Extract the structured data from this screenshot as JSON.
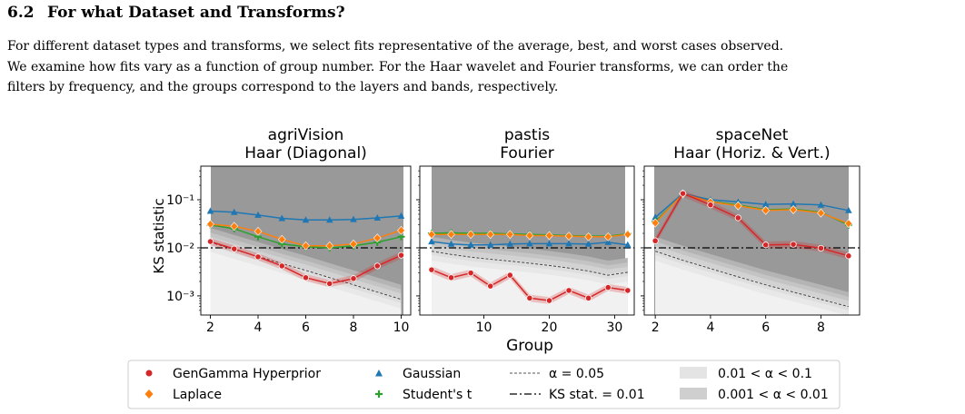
{
  "section": {
    "number": "6.2",
    "title": "For what Dataset and Transforms?"
  },
  "paragraph_lines": [
    "For different dataset types and transforms, we select fits representative of the average, best, and worst cases observed.",
    "We examine how fits vary as a function of group number. For the Haar wavelet and Fourier transforms, we can order the",
    "filters by frequency, and the groups correspond to the layers and bands, respectively."
  ],
  "figure": {
    "ylabel": "KS statistic",
    "xlabel": "Group",
    "reference_line": 0.01,
    "legend": [
      {
        "label": "GenGamma Hyperprior",
        "color": "#d62728",
        "marker": "circle"
      },
      {
        "label": "Laplace",
        "color": "#ff7f0e",
        "marker": "diamond"
      },
      {
        "label": "Gaussian",
        "color": "#1f77b4",
        "marker": "triangle"
      },
      {
        "label": "Student's t",
        "color": "#2ca02c",
        "marker": "plus"
      },
      {
        "label": "α = 0.05",
        "style": "dashed"
      },
      {
        "label": "KS stat. = 0.01",
        "style": "dashdot"
      },
      {
        "label": "0.01 < α < 0.1",
        "color": "#e8e8e8"
      },
      {
        "label": "0.001 < α < 0.01",
        "color": "#d0d0d0"
      }
    ]
  },
  "chart_data": [
    {
      "type": "line",
      "title": [
        "agriVision",
        "Haar (Diagonal)"
      ],
      "ylabel": "KS statistic",
      "y_scale": "log",
      "ylim": [
        0.0004,
        0.5
      ],
      "xlim": [
        1.6,
        10.4
      ],
      "xticks": [
        2,
        4,
        6,
        8,
        10
      ],
      "yticks": [
        0.001,
        0.01,
        0.1
      ],
      "ytick_labels": [
        "10⁻³",
        "10⁻²",
        "10⁻¹"
      ],
      "x": [
        2,
        3,
        4,
        5,
        6,
        7,
        8,
        9,
        10
      ],
      "series": [
        {
          "name": "Gaussian",
          "values": [
            0.058,
            0.055,
            0.048,
            0.041,
            0.038,
            0.038,
            0.039,
            0.042,
            0.046
          ]
        },
        {
          "name": "Laplace",
          "values": [
            0.031,
            0.028,
            0.022,
            0.015,
            0.011,
            0.011,
            0.012,
            0.016,
            0.023
          ]
        },
        {
          "name": "Student's t",
          "values": [
            0.03,
            0.025,
            0.017,
            0.012,
            0.0105,
            0.01,
            0.011,
            0.013,
            0.017
          ]
        },
        {
          "name": "GenGamma Hyperprior",
          "values": [
            0.0135,
            0.0095,
            0.0065,
            0.0042,
            0.0024,
            0.0018,
            0.0023,
            0.0042,
            0.007
          ]
        }
      ],
      "alpha_005_line": [
        0.013,
        0.0092,
        0.0066,
        0.0047,
        0.0034,
        0.0024,
        0.0017,
        0.0012,
        0.00085
      ]
    },
    {
      "type": "line",
      "title": [
        "pastis",
        "Fourier"
      ],
      "y_scale": "log",
      "ylim": [
        0.0004,
        0.5
      ],
      "xlim": [
        0.2,
        33
      ],
      "xticks": [
        10,
        20,
        30
      ],
      "x": [
        2,
        5,
        8,
        11,
        14,
        17,
        20,
        23,
        26,
        29,
        32
      ],
      "series": [
        {
          "name": "Gaussian",
          "values": [
            0.0135,
            0.012,
            0.0115,
            0.0115,
            0.012,
            0.0122,
            0.0122,
            0.0122,
            0.012,
            0.013,
            0.0115
          ]
        },
        {
          "name": "Laplace",
          "values": [
            0.019,
            0.019,
            0.019,
            0.019,
            0.019,
            0.018,
            0.018,
            0.0175,
            0.017,
            0.017,
            0.019
          ]
        },
        {
          "name": "Student's t",
          "values": [
            0.02,
            0.0205,
            0.02,
            0.02,
            0.0195,
            0.019,
            0.0185,
            0.018,
            0.0175,
            0.0175,
            0.0195
          ]
        },
        {
          "name": "GenGamma Hyperprior",
          "values": [
            0.0035,
            0.0024,
            0.003,
            0.0016,
            0.0027,
            0.0009,
            0.0008,
            0.0013,
            0.0009,
            0.0015,
            0.0013
          ]
        }
      ],
      "alpha_005_line": [
        0.0085,
        0.0073,
        0.0064,
        0.0058,
        0.0053,
        0.0048,
        0.0043,
        0.0038,
        0.0033,
        0.0027,
        0.0031
      ]
    },
    {
      "type": "line",
      "title": [
        "spaceNet",
        "Haar (Horiz. & Vert.)"
      ],
      "y_scale": "log",
      "ylim": [
        0.0004,
        0.5
      ],
      "xlim": [
        1.6,
        9.4
      ],
      "xticks": [
        2,
        4,
        6,
        8
      ],
      "x": [
        2,
        3,
        4,
        5,
        6,
        7,
        8,
        9
      ],
      "series": [
        {
          "name": "Gaussian",
          "values": [
            0.043,
            0.135,
            0.1,
            0.09,
            0.08,
            0.082,
            0.078,
            0.06
          ]
        },
        {
          "name": "Laplace",
          "values": [
            0.033,
            0.132,
            0.09,
            0.075,
            0.06,
            0.062,
            0.053,
            0.032
          ]
        },
        {
          "name": "Student's t",
          "values": [
            0.035,
            0.13,
            0.092,
            0.078,
            0.062,
            0.064,
            0.055,
            0.03
          ]
        },
        {
          "name": "GenGamma Hyperprior",
          "values": [
            0.014,
            0.135,
            0.078,
            0.042,
            0.0115,
            0.0118,
            0.0098,
            0.0068
          ]
        }
      ],
      "alpha_005_line": [
        0.0085,
        0.0055,
        0.0037,
        0.0025,
        0.0017,
        0.0012,
        0.00085,
        0.0006
      ]
    }
  ]
}
